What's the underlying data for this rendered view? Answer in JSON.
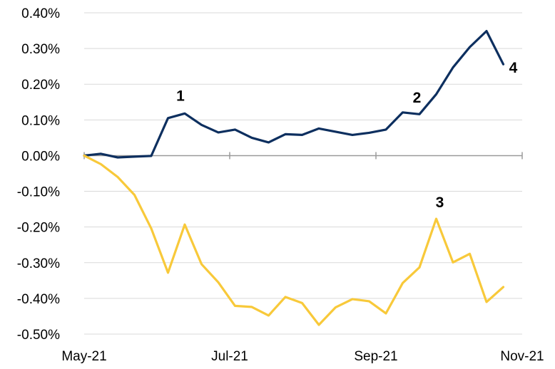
{
  "chart_data": {
    "type": "line",
    "title": "",
    "xlabel": "",
    "ylabel": "",
    "x_ticks": [
      "May-21",
      "Jul-21",
      "Sep-21",
      "Nov-21"
    ],
    "y_ticks": [
      "0.40%",
      "0.30%",
      "0.20%",
      "0.10%",
      "0.00%",
      "-0.10%",
      "-0.20%",
      "-0.30%",
      "-0.40%",
      "-0.50%"
    ],
    "ylim": [
      -0.5,
      0.4
    ],
    "grid": "horizontal",
    "series": [
      {
        "color": "#0d2f5f",
        "values": [
          0.0,
          0.005,
          -0.005,
          -0.003,
          -0.001,
          0.105,
          0.118,
          0.086,
          0.065,
          0.073,
          0.05,
          0.037,
          0.06,
          0.058,
          0.076,
          0.067,
          0.058,
          0.064,
          0.073,
          0.121,
          0.116,
          0.172,
          0.247,
          0.304,
          0.349,
          0.256
        ]
      },
      {
        "color": "#f8c93a",
        "values": [
          0.0,
          -0.024,
          -0.06,
          -0.11,
          -0.204,
          -0.328,
          -0.193,
          -0.304,
          -0.355,
          -0.421,
          -0.424,
          -0.448,
          -0.396,
          -0.413,
          -0.474,
          -0.425,
          -0.402,
          -0.408,
          -0.442,
          -0.357,
          -0.313,
          -0.177,
          -0.299,
          -0.275,
          -0.41,
          -0.368
        ]
      }
    ],
    "annotations": [
      {
        "text": "1",
        "series": 0,
        "index": 6
      },
      {
        "text": "2",
        "series": 0,
        "index": 19
      },
      {
        "text": "3",
        "series": 1,
        "index": 21
      },
      {
        "text": "4",
        "series": 0,
        "index": 25
      }
    ]
  }
}
